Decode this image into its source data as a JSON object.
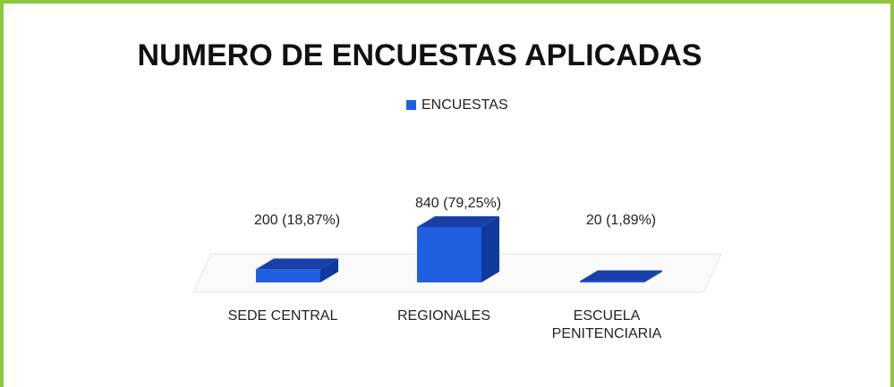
{
  "chart_data": {
    "type": "bar3d",
    "title": "NUMERO DE ENCUESTAS APLICADAS",
    "categories": [
      "SEDE CENTRAL",
      "REGIONALES",
      "ESCUELA PENITENCIARIA"
    ],
    "series": [
      {
        "name": "ENCUESTAS",
        "color": "#1f5fe0",
        "values": [
          200,
          840,
          20
        ],
        "value_labels": [
          "200 (18,87%)",
          "840 (79,25%)",
          "20 (1,89%)"
        ]
      }
    ],
    "legend": "top"
  }
}
